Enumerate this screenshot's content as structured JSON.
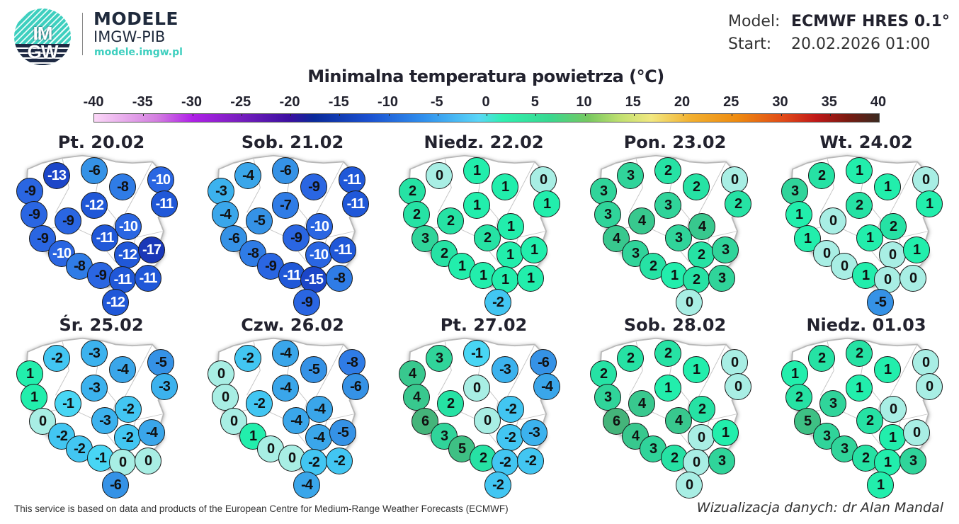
{
  "header": {
    "logo": {
      "line1": "IM",
      "line2": "GW",
      "icon": "imgw-logo-icon"
    },
    "brand_title": "MODELE",
    "brand_subtitle": "IMGW-PIB",
    "brand_url": "modele.imgw.pl",
    "model_label": "Model:",
    "model_value": "ECMWF HRES 0.1°",
    "start_label": "Start:",
    "start_value": "20.02.2026 01:00"
  },
  "title": "Minimalna temperatura powietrza (°C)",
  "colorbar": {
    "ticks": [
      "-40",
      "-35",
      "-30",
      "-25",
      "-20",
      "-15",
      "-10",
      "-5",
      "0",
      "5",
      "10",
      "15",
      "20",
      "25",
      "30",
      "35",
      "40"
    ],
    "min": -40,
    "max": 40,
    "colors": {
      "-40": "#fbd6f7",
      "-30": "#b020e8",
      "-20": "#3a0fa0",
      "-10": "#1a50d0",
      "-5": "#3090ee",
      "0": "#5ad6f8",
      "5": "#2ff0b0",
      "10": "#38d890",
      "15": "#c0e070",
      "20": "#f2b030",
      "30": "#c01818",
      "40": "#3a2a20"
    }
  },
  "maps": [
    {
      "day": "Pt. 20.02",
      "values": [
        -13,
        -6,
        -9,
        -8,
        -10,
        -11,
        -12,
        -9,
        -9,
        -10,
        -9,
        -11,
        -10,
        -12,
        -17,
        -8,
        -9,
        -11,
        -11,
        -12
      ]
    },
    {
      "day": "Sob. 21.02",
      "values": [
        -4,
        -6,
        -3,
        -9,
        -11,
        -11,
        -7,
        -4,
        -5,
        -10,
        -6,
        -9,
        -8,
        -10,
        -11,
        -9,
        -11,
        -15,
        -8,
        -9
      ]
    },
    {
      "day": "Niedz. 22.02",
      "values": [
        0,
        1,
        2,
        1,
        0,
        1,
        1,
        2,
        2,
        1,
        3,
        2,
        2,
        1,
        1,
        1,
        1,
        1,
        1,
        -2
      ]
    },
    {
      "day": "Pon. 23.02",
      "values": [
        3,
        2,
        3,
        2,
        0,
        2,
        3,
        3,
        4,
        4,
        4,
        3,
        3,
        2,
        3,
        2,
        1,
        2,
        3,
        0
      ]
    },
    {
      "day": "Wt. 24.02",
      "values": [
        2,
        1,
        3,
        1,
        0,
        1,
        2,
        1,
        0,
        2,
        1,
        1,
        0,
        0,
        1,
        0,
        1,
        0,
        0,
        -5
      ]
    },
    {
      "day": "Śr. 25.02",
      "values": [
        -2,
        -3,
        1,
        -4,
        -5,
        -3,
        -3,
        1,
        -1,
        -2,
        0,
        -3,
        -2,
        -2,
        -4,
        -2,
        -1,
        0,
        0,
        -6
      ]
    },
    {
      "day": "Czw. 26.02",
      "values": [
        -2,
        -4,
        0,
        -5,
        -8,
        -6,
        -4,
        0,
        -2,
        -4,
        0,
        -4,
        1,
        -4,
        -5,
        0,
        0,
        -2,
        -2,
        -4
      ]
    },
    {
      "day": "Pt. 27.02",
      "values": [
        3,
        -1,
        4,
        -3,
        -6,
        -4,
        0,
        4,
        2,
        -2,
        6,
        0,
        3,
        -2,
        -3,
        5,
        2,
        -2,
        -2,
        -2
      ]
    },
    {
      "day": "Sob. 28.02",
      "values": [
        2,
        2,
        2,
        1,
        0,
        0,
        1,
        3,
        4,
        2,
        6,
        4,
        4,
        0,
        1,
        3,
        2,
        0,
        3,
        0
      ]
    },
    {
      "day": "Niedz. 01.03",
      "values": [
        2,
        2,
        1,
        1,
        0,
        0,
        1,
        2,
        3,
        0,
        5,
        2,
        3,
        1,
        0,
        3,
        2,
        1,
        3,
        1
      ]
    }
  ],
  "station_positions": [
    [
      60,
      45
    ],
    [
      113,
      38
    ],
    [
      22,
      67
    ],
    [
      153,
      61
    ],
    [
      207,
      51
    ],
    [
      212,
      85
    ],
    [
      113,
      87
    ],
    [
      28,
      100
    ],
    [
      76,
      109
    ],
    [
      161,
      117
    ],
    [
      40,
      134
    ],
    [
      128,
      133
    ],
    [
      67,
      155
    ],
    [
      160,
      157
    ],
    [
      194,
      150
    ],
    [
      92,
      173
    ],
    [
      122,
      186
    ],
    [
      153,
      192
    ],
    [
      189,
      190
    ],
    [
      143,
      224
    ]
  ],
  "footer": {
    "left": "This service is based on data and products of the European Centre for Medium-Range Weather Forecasts (ECMWF)",
    "right": "Wizualizacja danych: dr Alan Mandal"
  }
}
